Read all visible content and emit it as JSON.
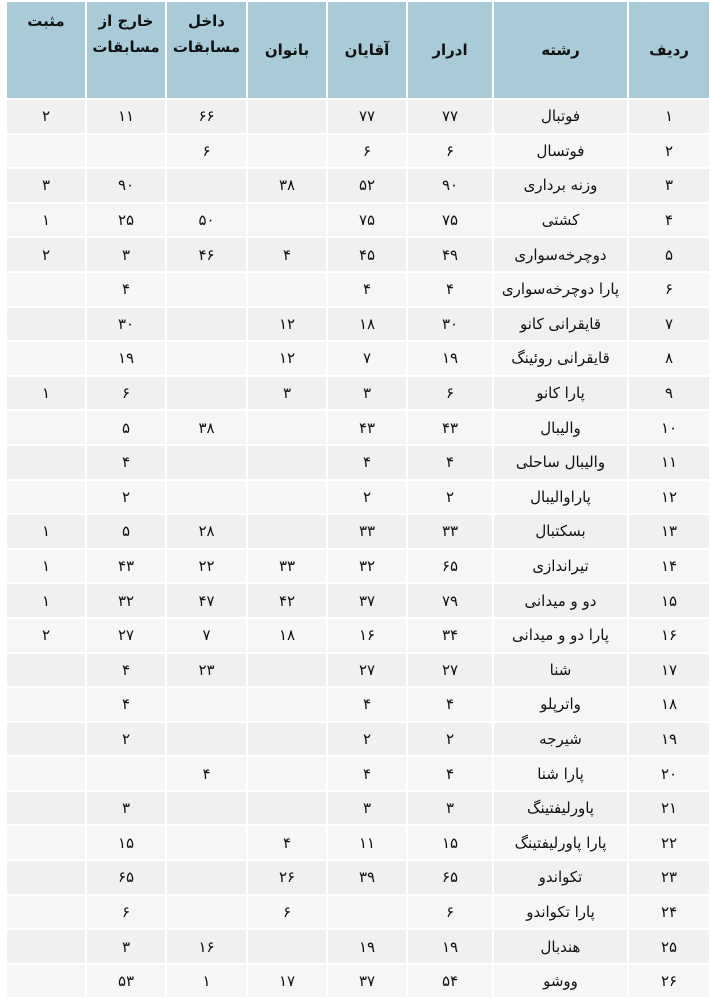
{
  "headers": [
    "ردیف",
    "رشته",
    "ادرار",
    "آقایان",
    "بانوان",
    "داخل مسابقات",
    "خارج از مسابقات",
    "مثبت"
  ],
  "header_color": "#a9cbd8",
  "rows": [
    [
      "۱",
      "فوتبال",
      "۷۷",
      "۷۷",
      "",
      "۶۶",
      "۱۱",
      "۲"
    ],
    [
      "۲",
      "فوتسال",
      "۶",
      "۶",
      "",
      "۶",
      "",
      ""
    ],
    [
      "۳",
      "وزنه برداری",
      "۹۰",
      "۵۲",
      "۳۸",
      "",
      "۹۰",
      "۳"
    ],
    [
      "۴",
      "کشتی",
      "۷۵",
      "۷۵",
      "",
      "۵۰",
      "۲۵",
      "۱"
    ],
    [
      "۵",
      "دوچرخه‌سواری",
      "۴۹",
      "۴۵",
      "۴",
      "۴۶",
      "۳",
      "۲"
    ],
    [
      "۶",
      "پارا دوچرخه‌سواری",
      "۴",
      "۴",
      "",
      "",
      "۴",
      ""
    ],
    [
      "۷",
      "قایقرانی کانو",
      "۳۰",
      "۱۸",
      "۱۲",
      "",
      "۳۰",
      ""
    ],
    [
      "۸",
      "قایقرانی روئینگ",
      "۱۹",
      "۷",
      "۱۲",
      "",
      "۱۹",
      ""
    ],
    [
      "۹",
      "پارا کانو",
      "۶",
      "۳",
      "۳",
      "",
      "۶",
      "۱"
    ],
    [
      "۱۰",
      "والیبال",
      "۴۳",
      "۴۳",
      "",
      "۳۸",
      "۵",
      ""
    ],
    [
      "۱۱",
      "والیبال ساحلی",
      "۴",
      "۴",
      "",
      "",
      "۴",
      ""
    ],
    [
      "۱۲",
      "پاراوالیبال",
      "۲",
      "۲",
      "",
      "",
      "۲",
      ""
    ],
    [
      "۱۳",
      "بسکتبال",
      "۳۳",
      "۳۳",
      "",
      "۲۸",
      "۵",
      "۱"
    ],
    [
      "۱۴",
      "تیراندازی",
      "۶۵",
      "۳۲",
      "۳۳",
      "۲۲",
      "۴۳",
      "۱"
    ],
    [
      "۱۵",
      "دو و میدانی",
      "۷۹",
      "۳۷",
      "۴۲",
      "۴۷",
      "۳۲",
      "۱"
    ],
    [
      "۱۶",
      "پارا دو و میدانی",
      "۳۴",
      "۱۶",
      "۱۸",
      "۷",
      "۲۷",
      "۲"
    ],
    [
      "۱۷",
      "شنا",
      "۲۷",
      "۲۷",
      "",
      "۲۳",
      "۴",
      ""
    ],
    [
      "۱۸",
      "واترپلو",
      "۴",
      "۴",
      "",
      "",
      "۴",
      ""
    ],
    [
      "۱۹",
      "شیرجه",
      "۲",
      "۲",
      "",
      "",
      "۲",
      ""
    ],
    [
      "۲۰",
      "پارا شنا",
      "۴",
      "۴",
      "",
      "۴",
      "",
      ""
    ],
    [
      "۲۱",
      "پاورلیفتینگ",
      "۳",
      "۳",
      "",
      "",
      "۳",
      ""
    ],
    [
      "۲۲",
      "پارا پاورلیفتینگ",
      "۱۵",
      "۱۱",
      "۴",
      "",
      "۱۵",
      ""
    ],
    [
      "۲۳",
      "تکواندو",
      "۶۵",
      "۳۹",
      "۲۶",
      "",
      "۶۵",
      ""
    ],
    [
      "۲۴",
      "پارا تکواندو",
      "۶",
      "",
      "۶",
      "",
      "۶",
      ""
    ],
    [
      "۲۵",
      "هندبال",
      "۱۹",
      "۱۹",
      "",
      "۱۶",
      "۳",
      ""
    ],
    [
      "۲۶",
      "ووشو",
      "۵۴",
      "۳۷",
      "۱۷",
      "۱",
      "۵۳",
      ""
    ]
  ]
}
